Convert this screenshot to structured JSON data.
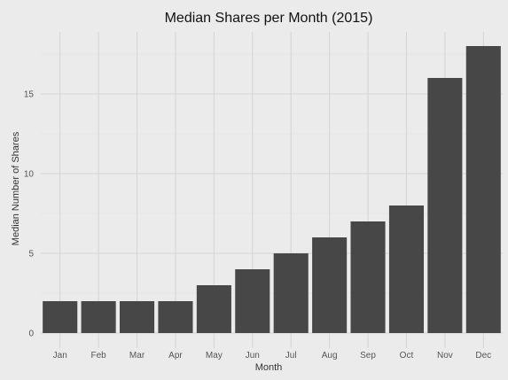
{
  "chart_data": {
    "type": "bar",
    "title": "Median Shares per Month (2015)",
    "xlabel": "Month",
    "ylabel": "Median Number of Shares",
    "categories": [
      "Jan",
      "Feb",
      "Mar",
      "Apr",
      "May",
      "Jun",
      "Jul",
      "Aug",
      "Sep",
      "Oct",
      "Nov",
      "Dec"
    ],
    "values": [
      2,
      2,
      2,
      2,
      3,
      4,
      5,
      6,
      7,
      8,
      16,
      18
    ],
    "ylim": [
      0,
      19
    ],
    "yticks": [
      0,
      5,
      10,
      15
    ],
    "grid": true,
    "bar_color": "#474747",
    "background_color": "#ebebeb"
  }
}
